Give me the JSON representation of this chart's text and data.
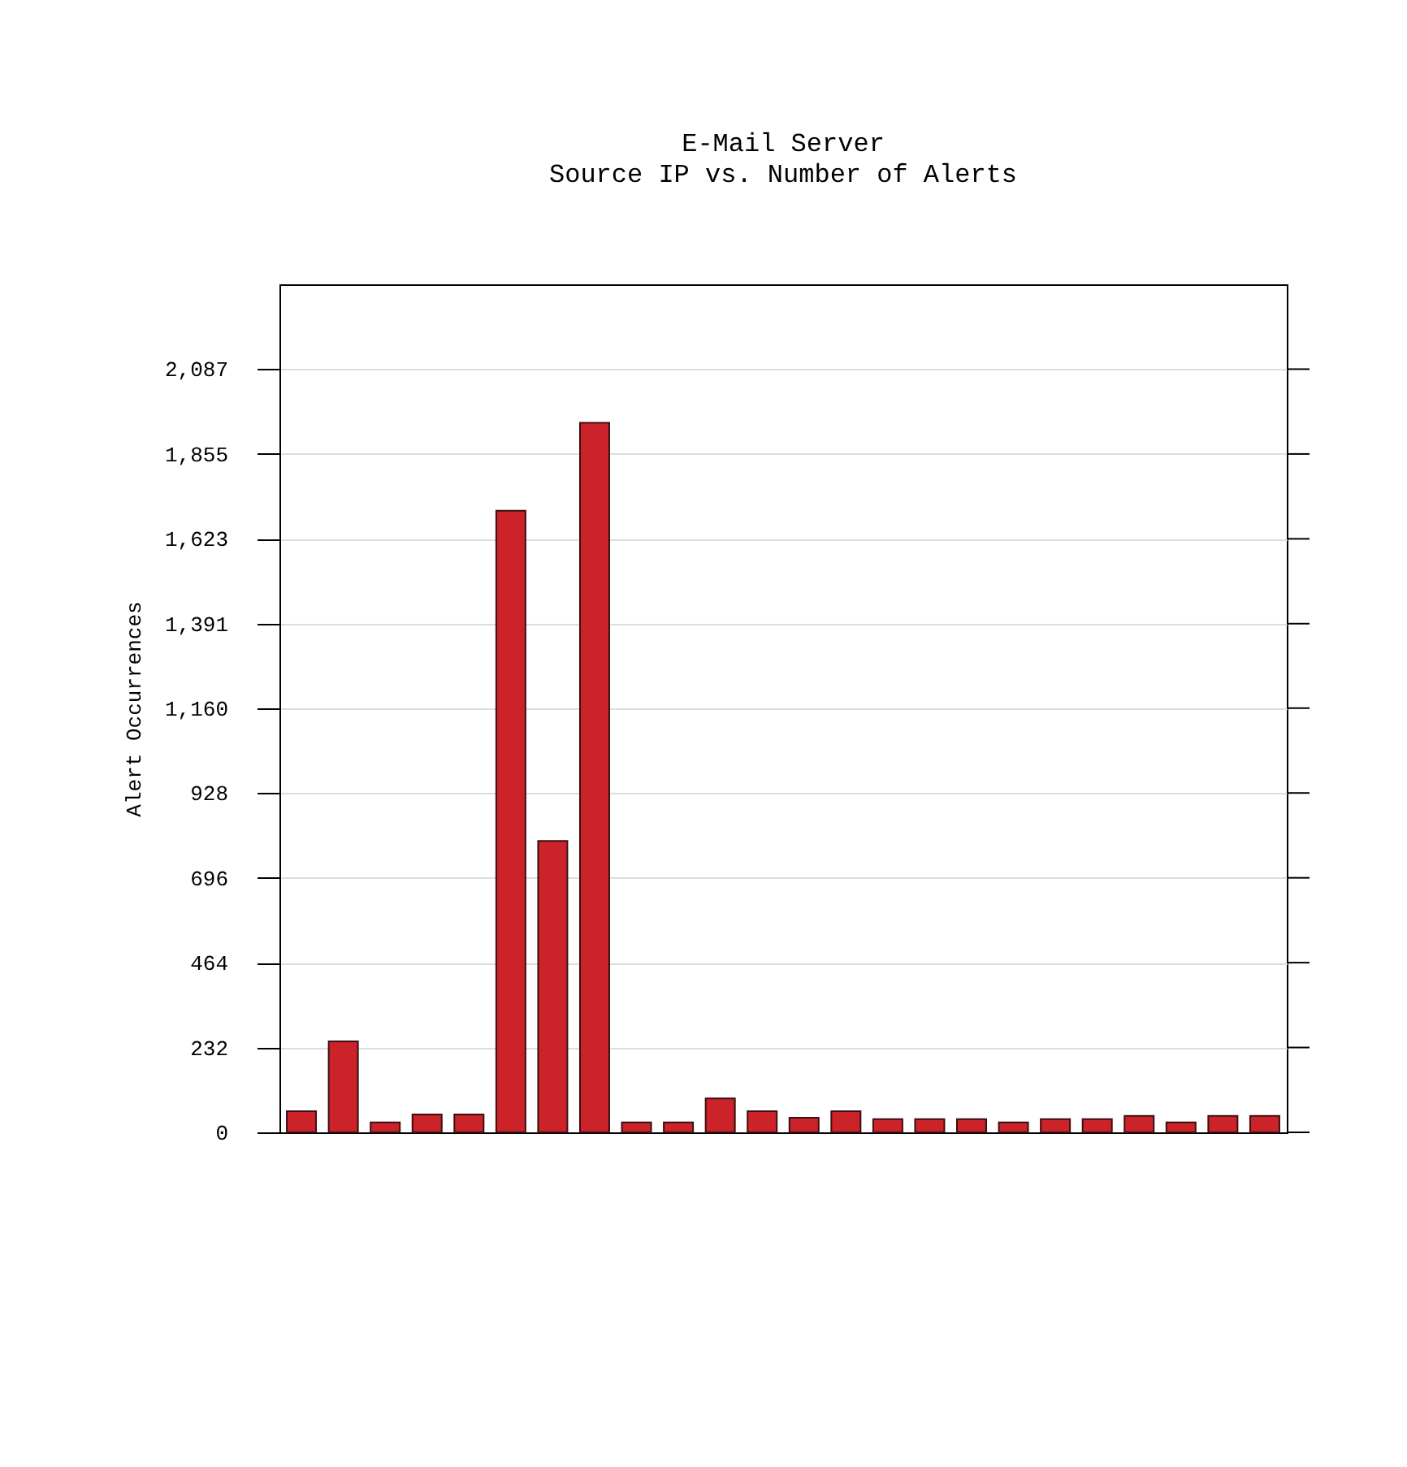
{
  "chart_data": {
    "type": "bar",
    "title": "E-Mail Server",
    "subtitle": "Source IP vs. Number of Alerts",
    "ylabel": "Alert Occurrences",
    "categories": [
      null,
      null,
      null,
      null,
      null,
      null,
      null,
      null,
      null,
      null,
      null,
      null,
      null,
      null,
      null,
      null,
      null,
      null,
      null,
      null,
      null,
      null,
      null,
      null
    ],
    "values": [
      58,
      249,
      27,
      49,
      49,
      1700,
      797,
      1940,
      27,
      27,
      93,
      58,
      40,
      58,
      36,
      36,
      36,
      27,
      36,
      36,
      45,
      27,
      45,
      45
    ],
    "color": "#cc2229",
    "ylim": [
      0,
      2319
    ],
    "yticks": [
      0,
      232,
      464,
      696,
      928,
      {
        "value": 1160,
        "label": "1,160"
      },
      {
        "value": 1391,
        "label": "1,391"
      },
      {
        "value": 1623,
        "label": "1,623"
      },
      {
        "value": 1855,
        "label": "1,855"
      },
      {
        "value": 2087,
        "label": "2,087"
      }
    ],
    "grid": "y",
    "tick_labels": "y"
  }
}
